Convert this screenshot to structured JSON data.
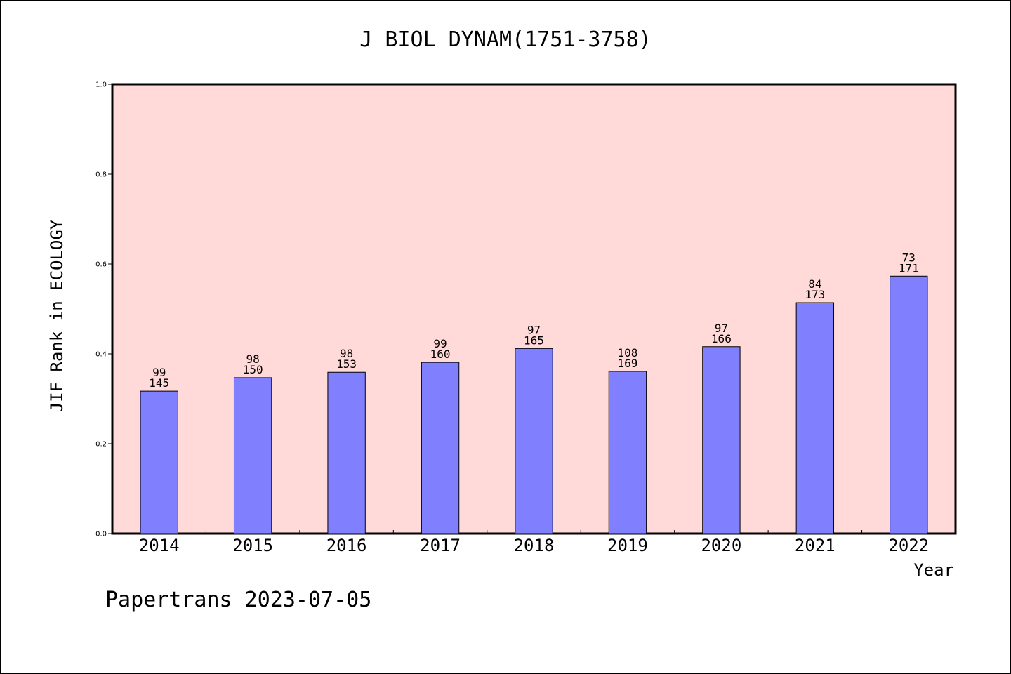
{
  "chart_data": {
    "type": "bar",
    "title": "J BIOL DYNAM(1751-3758)",
    "xlabel": "Year",
    "ylabel": "JIF Rank in ECOLOGY",
    "ylim": [
      0,
      1.0
    ],
    "yticks": [
      "0.0",
      "0.2",
      "0.4",
      "0.6",
      "0.8",
      "1.0"
    ],
    "categories": [
      "2014",
      "2015",
      "2016",
      "2017",
      "2018",
      "2019",
      "2020",
      "2021",
      "2022"
    ],
    "values": [
      0.317,
      0.347,
      0.359,
      0.381,
      0.412,
      0.361,
      0.416,
      0.514,
      0.573
    ],
    "rank": [
      "99",
      "98",
      "98",
      "99",
      "97",
      "108",
      "97",
      "84",
      "73"
    ],
    "total": [
      "145",
      "150",
      "153",
      "160",
      "165",
      "169",
      "166",
      "173",
      "171"
    ],
    "colors": {
      "plot_bg": "#ffdad8",
      "bar": "#8080ff",
      "bar_edge": "#000000"
    }
  },
  "footer": "Papertrans 2023-07-05"
}
